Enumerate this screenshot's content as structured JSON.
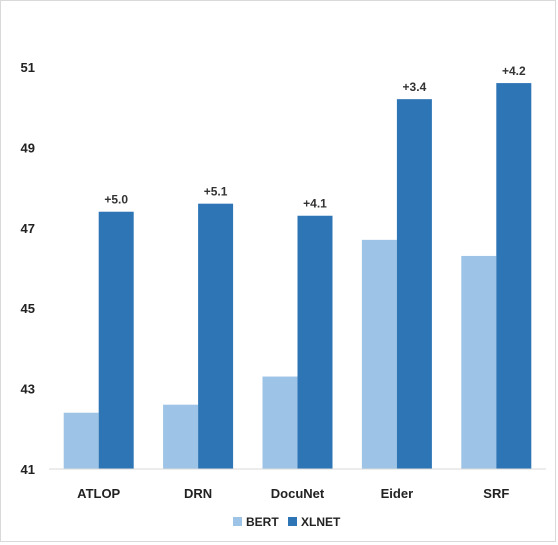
{
  "chart_data": {
    "type": "bar",
    "categories": [
      "ATLOP",
      "DRN",
      "DocuNet",
      "Eider",
      "SRF"
    ],
    "series": [
      {
        "name": "BERT",
        "values": [
          42.4,
          42.6,
          43.3,
          46.7,
          46.3
        ],
        "color": "#9dc3e6"
      },
      {
        "name": "XLNET",
        "values": [
          47.4,
          47.6,
          47.3,
          50.2,
          50.6
        ],
        "color": "#2e75b6"
      }
    ],
    "data_labels": [
      "+5.0",
      "+5.1",
      "+4.1",
      "+3.4",
      "+4.2"
    ],
    "ylim": [
      41,
      51
    ],
    "yticks": [
      "41",
      "43",
      "45",
      "47",
      "49",
      "51"
    ],
    "grid": false,
    "legend": "bottom"
  }
}
